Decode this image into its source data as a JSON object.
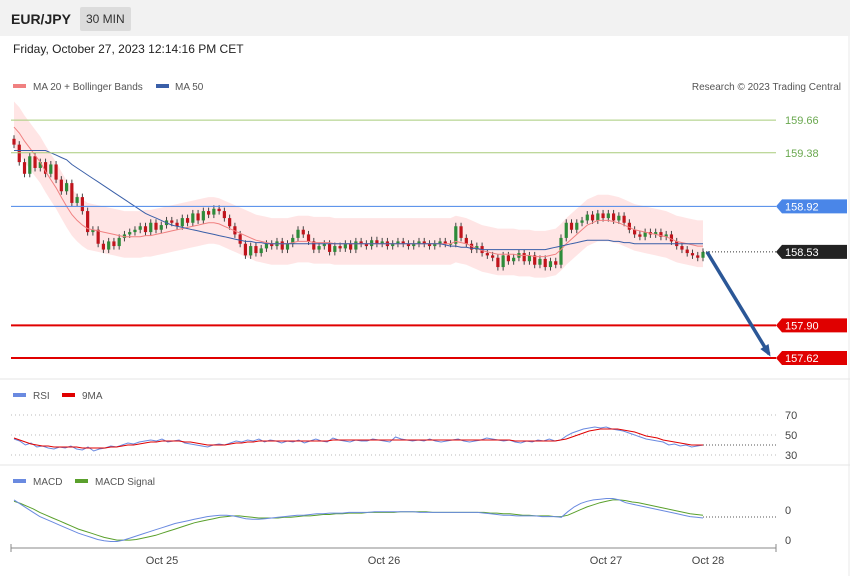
{
  "header": {
    "pair": "EUR/JPY",
    "timeframe": "30 MIN"
  },
  "timestamp": "Friday, October 27, 2023 12:14:16 PM CET",
  "legend": {
    "ma20": "MA 20 + Bollinger Bands",
    "ma50": "MA 50",
    "credit": "Research © 2023 Trading Central"
  },
  "colors": {
    "ma20": "#f08080",
    "ma50": "#3a5fa8",
    "band": "#ffe0e0",
    "bull": "#2e8b3a",
    "bear": "#c0141c",
    "resistance_green": "#a8cc7a",
    "pivot": "#4a86e8",
    "support": "#e00000",
    "arrow": "#2b5797",
    "rsi": "#6a8ae0",
    "rsi_ma": "#e00000",
    "macd": "#6a8ae0",
    "macd_signal": "#5aa02c"
  },
  "chart_data": [
    {
      "type": "candlestick",
      "instrument": "EUR/JPY",
      "timeframe": "30 MIN",
      "ylim": [
        157.5,
        159.85
      ],
      "xticks": [
        "Oct 25",
        "Oct 26",
        "Oct 27",
        "Oct 28"
      ],
      "levels": [
        {
          "value": 159.66,
          "label": "159.66",
          "role": "resistance"
        },
        {
          "value": 159.38,
          "label": "159.38",
          "role": "resistance"
        },
        {
          "value": 158.92,
          "label": "158.92",
          "role": "pivot"
        },
        {
          "value": 158.53,
          "label": "158.53",
          "role": "last-price"
        },
        {
          "value": 157.9,
          "label": "157.90",
          "role": "support"
        },
        {
          "value": 157.62,
          "label": "157.62",
          "role": "support"
        }
      ],
      "close_series": [
        159.45,
        159.3,
        159.2,
        159.35,
        159.25,
        159.3,
        159.2,
        159.28,
        159.15,
        159.05,
        159.12,
        158.95,
        159.0,
        158.88,
        158.7,
        158.72,
        158.6,
        158.55,
        158.62,
        158.58,
        158.65,
        158.68,
        158.7,
        158.72,
        158.75,
        158.7,
        158.78,
        158.72,
        158.76,
        158.8,
        158.78,
        158.75,
        158.82,
        158.78,
        158.86,
        158.8,
        158.88,
        158.85,
        158.9,
        158.88,
        158.82,
        158.75,
        158.68,
        158.6,
        158.5,
        158.58,
        158.52,
        158.56,
        158.6,
        158.58,
        158.62,
        158.55,
        158.6,
        158.65,
        158.72,
        158.68,
        158.62,
        158.55,
        158.58,
        158.6,
        158.53,
        158.58,
        158.56,
        158.6,
        158.55,
        158.62,
        158.6,
        158.58,
        158.63,
        158.6,
        158.62,
        158.58,
        158.6,
        158.62,
        158.6,
        158.58,
        158.6,
        158.62,
        158.6,
        158.58,
        158.6,
        158.62,
        158.6,
        158.6,
        158.75,
        158.65,
        158.6,
        158.55,
        158.58,
        158.52,
        158.5,
        158.48,
        158.4,
        158.5,
        158.45,
        158.48,
        158.52,
        158.45,
        158.5,
        158.42,
        158.47,
        158.4,
        158.45,
        158.42,
        158.65,
        158.78,
        158.72,
        158.78,
        158.8,
        158.85,
        158.8,
        158.86,
        158.82,
        158.86,
        158.8,
        158.84,
        158.78,
        158.72,
        158.68,
        158.66,
        158.7,
        158.68,
        158.7,
        158.66,
        158.68,
        158.62,
        158.58,
        158.55,
        158.52,
        158.5,
        158.48,
        158.53
      ],
      "ma20": [
        159.6,
        159.55,
        159.48,
        159.42,
        159.36,
        159.3,
        159.22,
        159.15,
        159.08,
        159.0,
        158.92,
        158.85,
        158.8,
        158.76,
        158.73,
        158.72,
        158.71,
        158.7,
        158.69,
        158.68,
        158.67,
        158.66,
        158.66,
        158.66,
        158.66,
        158.67,
        158.67,
        158.68,
        158.69,
        158.7,
        158.71,
        158.72,
        158.73,
        158.74,
        158.75,
        158.76,
        158.77,
        158.78,
        158.78,
        158.77,
        158.75,
        158.73,
        158.71,
        158.69,
        158.67,
        158.65,
        158.63,
        158.62,
        158.61,
        158.6,
        158.6,
        158.6,
        158.6,
        158.61,
        158.62,
        158.62,
        158.62,
        158.61,
        158.61,
        158.61,
        158.61,
        158.6,
        158.6,
        158.6,
        158.6,
        158.6,
        158.6,
        158.6,
        158.6,
        158.6,
        158.6,
        158.6,
        158.6,
        158.6,
        158.6,
        158.6,
        158.6,
        158.6,
        158.6,
        158.6,
        158.6,
        158.6,
        158.6,
        158.6,
        158.62,
        158.61,
        158.6,
        158.58,
        158.56,
        158.54,
        158.53,
        158.52,
        158.51,
        158.51,
        158.51,
        158.51,
        158.5,
        158.5,
        158.5,
        158.49,
        158.49,
        158.49,
        158.5,
        158.51,
        158.55,
        158.6,
        158.64,
        158.68,
        158.72,
        158.76,
        158.78,
        158.8,
        158.8,
        158.8,
        158.79,
        158.78,
        158.76,
        158.74,
        158.72,
        158.71,
        158.7,
        158.69,
        158.68,
        158.67,
        158.66,
        158.64,
        158.62,
        158.61,
        158.6,
        158.59,
        158.58,
        158.58
      ],
      "ma50": [
        159.4,
        159.4,
        159.4,
        159.4,
        159.4,
        159.4,
        159.4,
        159.38,
        159.36,
        159.34,
        159.32,
        159.28,
        159.25,
        159.22,
        159.19,
        159.16,
        159.13,
        159.1,
        159.07,
        159.04,
        159.01,
        158.98,
        158.95,
        158.92,
        158.89,
        158.86,
        158.84,
        158.82,
        158.8,
        158.78,
        158.76,
        158.75,
        158.74,
        158.73,
        158.72,
        158.71,
        158.7,
        158.69,
        158.68,
        158.67,
        158.66,
        158.65,
        158.64,
        158.63,
        158.62,
        158.62,
        158.61,
        158.61,
        158.6,
        158.6,
        158.6,
        158.6,
        158.6,
        158.6,
        158.6,
        158.6,
        158.6,
        158.6,
        158.6,
        158.6,
        158.6,
        158.6,
        158.6,
        158.6,
        158.6,
        158.6,
        158.6,
        158.6,
        158.6,
        158.6,
        158.6,
        158.6,
        158.6,
        158.6,
        158.6,
        158.6,
        158.6,
        158.6,
        158.6,
        158.6,
        158.6,
        158.6,
        158.59,
        158.58,
        158.58,
        158.57,
        158.57,
        158.56,
        158.56,
        158.55,
        158.55,
        158.55,
        158.55,
        158.55,
        158.55,
        158.55,
        158.55,
        158.55,
        158.55,
        158.55,
        158.55,
        158.55,
        158.56,
        158.57,
        158.58,
        158.59,
        158.6,
        158.61,
        158.62,
        158.63,
        158.63,
        158.63,
        158.63,
        158.63,
        158.62,
        158.62,
        158.61,
        158.61,
        158.6,
        158.6,
        158.6,
        158.6,
        158.6,
        158.6,
        158.6,
        158.6,
        158.6,
        158.6,
        158.6,
        158.6,
        158.6,
        158.6
      ]
    },
    {
      "type": "line",
      "title": "RSI",
      "ylim": [
        25,
        75
      ],
      "yticks": [
        30,
        50,
        70
      ],
      "series": [
        {
          "name": "RSI",
          "values": [
            46,
            44,
            40,
            42,
            38,
            39,
            37,
            36,
            38,
            37,
            39,
            36,
            35,
            38,
            34,
            36,
            37,
            39,
            38,
            40,
            42,
            41,
            43,
            44,
            45,
            44,
            46,
            43,
            44,
            45,
            42,
            41,
            40,
            39,
            38,
            40,
            41,
            40,
            42,
            44,
            43,
            45,
            44,
            46,
            43,
            45,
            44,
            42,
            44,
            43,
            45,
            42,
            44,
            46,
            44,
            43,
            47,
            45,
            44,
            43,
            45,
            44,
            44,
            46,
            45,
            44,
            43,
            48,
            46,
            45,
            44,
            45,
            44,
            46,
            44,
            43,
            44,
            45,
            46,
            44,
            43,
            44,
            45,
            47,
            46,
            45,
            44,
            45,
            43,
            42,
            44,
            43,
            45,
            44,
            46,
            44,
            45,
            49,
            52,
            54,
            56,
            57,
            58,
            57,
            58,
            56,
            55,
            54,
            52,
            50,
            48,
            46,
            45,
            44,
            43,
            40,
            41,
            39,
            40,
            38,
            39,
            40
          ]
        },
        {
          "name": "9MA",
          "values": [
            47,
            45,
            43,
            41,
            40,
            39,
            39,
            38,
            38,
            38,
            38,
            38,
            37,
            37,
            37,
            37,
            37,
            38,
            38,
            39,
            40,
            40,
            41,
            42,
            43,
            43,
            44,
            44,
            44,
            44,
            43,
            43,
            42,
            41,
            40,
            40,
            40,
            40,
            41,
            42,
            42,
            43,
            43,
            44,
            44,
            44,
            44,
            44,
            44,
            44,
            44,
            44,
            44,
            44,
            44,
            44,
            45,
            45,
            45,
            45,
            45,
            45,
            45,
            45,
            45,
            45,
            45,
            45,
            45,
            45,
            45,
            45,
            45,
            45,
            45,
            45,
            45,
            45,
            45,
            45,
            45,
            45,
            45,
            45,
            45,
            45,
            45,
            45,
            44,
            44,
            44,
            44,
            44,
            44,
            44,
            44,
            45,
            46,
            48,
            50,
            52,
            54,
            55,
            56,
            56,
            56,
            56,
            55,
            54,
            53,
            51,
            49,
            48,
            47,
            45,
            44,
            43,
            42,
            41,
            40,
            40,
            40
          ]
        }
      ]
    },
    {
      "type": "line",
      "title": "MACD",
      "yticks": [
        0,
        0
      ],
      "series": [
        {
          "name": "MACD",
          "values": [
            0.2,
            0.14,
            0.08,
            0.02,
            -0.04,
            -0.08,
            -0.12,
            -0.16,
            -0.2,
            -0.24,
            -0.28,
            -0.31,
            -0.34,
            -0.37,
            -0.39,
            -0.4,
            -0.4,
            -0.38,
            -0.35,
            -0.32,
            -0.29,
            -0.26,
            -0.23,
            -0.2,
            -0.17,
            -0.14,
            -0.12,
            -0.1,
            -0.08,
            -0.06,
            -0.04,
            -0.03,
            -0.02,
            -0.02,
            -0.03,
            -0.05,
            -0.07,
            -0.08,
            -0.08,
            -0.07,
            -0.06,
            -0.05,
            -0.04,
            -0.03,
            -0.02,
            -0.02,
            -0.01,
            0.0,
            0.0,
            0.01,
            0.01,
            0.01,
            0.02,
            0.02,
            0.02,
            0.02,
            0.03,
            0.03,
            0.03,
            0.03,
            0.03,
            0.03,
            0.03,
            0.02,
            0.02,
            0.02,
            0.02,
            0.02,
            0.02,
            0.02,
            0.02,
            0.02,
            0.02,
            0.01,
            0.0,
            -0.01,
            -0.02,
            -0.02,
            -0.03,
            -0.03,
            -0.03,
            -0.03,
            -0.04,
            -0.04,
            -0.04,
            -0.05,
            0.03,
            0.1,
            0.15,
            0.18,
            0.2,
            0.21,
            0.22,
            0.22,
            0.2,
            0.16,
            0.14,
            0.12,
            0.1,
            0.08,
            0.06,
            0.04,
            0.02,
            0.0,
            -0.02,
            -0.04,
            -0.05,
            -0.06
          ]
        },
        {
          "name": "MACD Signal",
          "values": [
            0.18,
            0.15,
            0.11,
            0.07,
            0.02,
            -0.02,
            -0.06,
            -0.1,
            -0.14,
            -0.18,
            -0.22,
            -0.25,
            -0.28,
            -0.31,
            -0.34,
            -0.36,
            -0.38,
            -0.38,
            -0.38,
            -0.37,
            -0.35,
            -0.33,
            -0.31,
            -0.28,
            -0.25,
            -0.22,
            -0.19,
            -0.16,
            -0.13,
            -0.11,
            -0.09,
            -0.07,
            -0.05,
            -0.04,
            -0.03,
            -0.03,
            -0.04,
            -0.05,
            -0.06,
            -0.06,
            -0.06,
            -0.06,
            -0.05,
            -0.05,
            -0.04,
            -0.03,
            -0.03,
            -0.02,
            -0.01,
            -0.01,
            0.0,
            0.0,
            0.01,
            0.01,
            0.01,
            0.02,
            0.02,
            0.02,
            0.02,
            0.02,
            0.03,
            0.03,
            0.03,
            0.03,
            0.03,
            0.02,
            0.02,
            0.02,
            0.02,
            0.02,
            0.02,
            0.02,
            0.02,
            0.02,
            0.01,
            0.01,
            0.0,
            0.0,
            -0.01,
            -0.02,
            -0.02,
            -0.03,
            -0.03,
            -0.03,
            -0.04,
            -0.04,
            -0.02,
            0.02,
            0.06,
            0.1,
            0.13,
            0.16,
            0.18,
            0.2,
            0.2,
            0.19,
            0.17,
            0.16,
            0.14,
            0.12,
            0.1,
            0.08,
            0.06,
            0.04,
            0.02,
            0.0,
            -0.01,
            -0.02
          ]
        }
      ]
    }
  ]
}
